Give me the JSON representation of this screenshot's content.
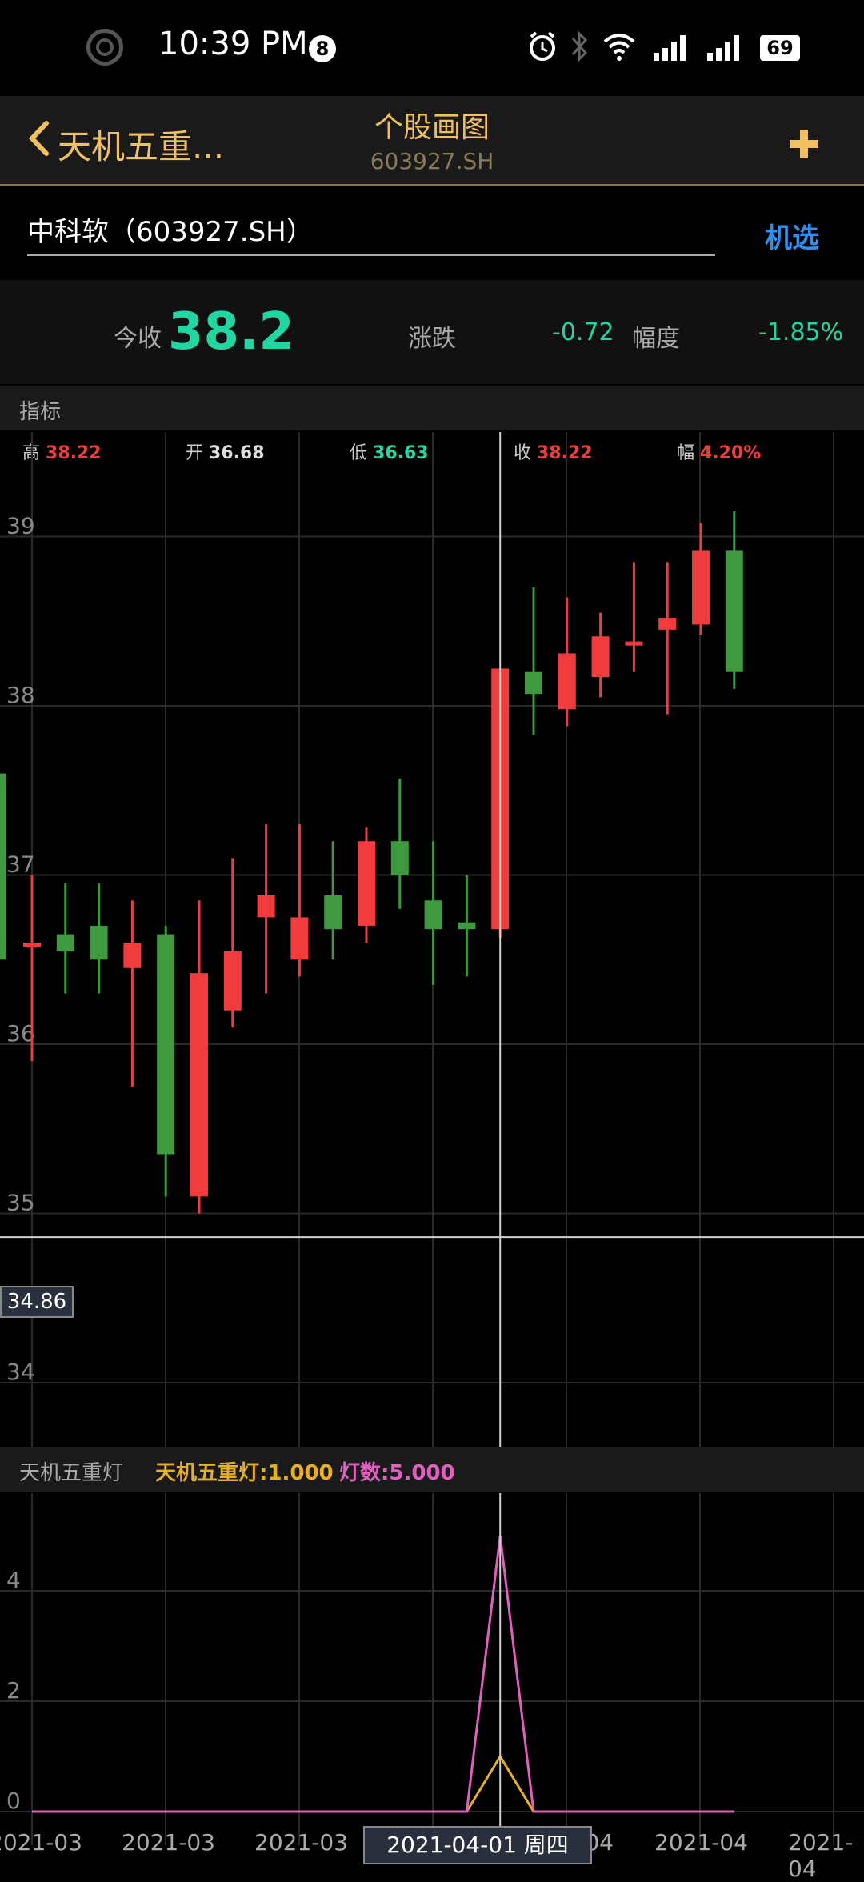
{
  "status_bar": {
    "time": "10:39 PM",
    "notification_count": "8",
    "battery": "69"
  },
  "nav": {
    "back_label": "天机五重...",
    "title": "个股画图",
    "subtitle": "603927.SH",
    "add_icon": "plus-icon"
  },
  "search": {
    "value": "中科软（603927.SH）",
    "pick_label": "机选"
  },
  "summary": {
    "close_label": "今收",
    "close_value": "38.2",
    "change_label": "涨跌",
    "change_value": "-0.72",
    "range_label": "幅度",
    "range_value": "-1.85%"
  },
  "indicator_header": "指标",
  "ohlc_info": {
    "high_label": "高",
    "high": "38.22",
    "open_label": "开",
    "open": "36.68",
    "low_label": "低",
    "low": "36.63",
    "close_label": "收",
    "close": "38.22",
    "amp_label": "幅",
    "amp": "4.20%"
  },
  "crosshair_price": "34.86",
  "sub_header": {
    "name": "天机五重灯",
    "line1": "天机五重灯:1.000",
    "line2": "灯数:5.000"
  },
  "x_axis": {
    "labels": [
      "2021-03",
      "2021-03",
      "2021-03",
      "2021-04",
      "2021-04",
      "2021-04"
    ],
    "crosshair_label": "2021-04-01 周四"
  },
  "colors": {
    "up": "#f03c3c",
    "down": "#3f9a3f",
    "accent": "#f0c060",
    "line1": "#e8b020",
    "line2": "#e060c0"
  },
  "chart_data": [
    {
      "type": "candlestick",
      "y_ticks": [
        34,
        35,
        36,
        37,
        38,
        39
      ],
      "ylim": [
        34,
        39.9
      ],
      "candles": [
        {
          "open": 36.6,
          "high": 37.0,
          "low": 35.9,
          "close": 36.6
        },
        {
          "open": 36.65,
          "high": 36.95,
          "low": 36.3,
          "close": 36.55
        },
        {
          "open": 36.7,
          "high": 36.95,
          "low": 36.3,
          "close": 36.5
        },
        {
          "open": 36.45,
          "high": 36.85,
          "low": 35.75,
          "close": 36.6
        },
        {
          "open": 36.65,
          "high": 36.7,
          "low": 35.1,
          "close": 35.35
        },
        {
          "open": 35.1,
          "high": 36.85,
          "low": 35.0,
          "close": 36.42
        },
        {
          "open": 36.2,
          "high": 37.1,
          "low": 36.1,
          "close": 36.55
        },
        {
          "open": 36.75,
          "high": 37.3,
          "low": 36.3,
          "close": 36.88
        },
        {
          "open": 36.5,
          "high": 37.3,
          "low": 36.4,
          "close": 36.75
        },
        {
          "open": 36.88,
          "high": 37.2,
          "low": 36.5,
          "close": 36.68
        },
        {
          "open": 36.7,
          "high": 37.28,
          "low": 36.6,
          "close": 37.2
        },
        {
          "open": 37.2,
          "high": 37.57,
          "low": 36.8,
          "close": 37.0
        },
        {
          "open": 36.85,
          "high": 37.2,
          "low": 36.35,
          "close": 36.68
        },
        {
          "open": 36.72,
          "high": 37.0,
          "low": 36.4,
          "close": 36.68
        },
        {
          "open": 36.68,
          "high": 38.22,
          "low": 36.63,
          "close": 38.22
        },
        {
          "open": 38.2,
          "high": 38.7,
          "low": 37.83,
          "close": 38.07
        },
        {
          "open": 37.98,
          "high": 38.64,
          "low": 37.88,
          "close": 38.31
        },
        {
          "open": 38.17,
          "high": 38.55,
          "low": 38.05,
          "close": 38.41
        },
        {
          "open": 38.38,
          "high": 38.85,
          "low": 38.2,
          "close": 38.38
        },
        {
          "open": 38.45,
          "high": 38.85,
          "low": 37.95,
          "close": 38.52
        },
        {
          "open": 38.48,
          "high": 39.08,
          "low": 38.42,
          "close": 38.92
        },
        {
          "open": 38.92,
          "high": 39.15,
          "low": 38.1,
          "close": 38.2
        }
      ],
      "partial_left_candle": {
        "open": 36.5,
        "high": 37.7,
        "low": 36.4,
        "close": 37.6
      }
    },
    {
      "type": "line",
      "y_ticks": [
        0,
        2,
        4
      ],
      "ylim": [
        -0.2,
        5.8
      ],
      "series": [
        {
          "name": "天机五重灯",
          "values": [
            0,
            0,
            0,
            0,
            0,
            0,
            0,
            0,
            0,
            0,
            0,
            0,
            0,
            0,
            1,
            0,
            0,
            0,
            0,
            0,
            0,
            0
          ]
        },
        {
          "name": "灯数",
          "values": [
            0,
            0,
            0,
            0,
            0,
            0,
            0,
            0,
            0,
            0,
            0,
            0,
            0,
            0,
            5,
            0,
            0,
            0,
            0,
            0,
            0,
            0
          ]
        }
      ]
    }
  ]
}
